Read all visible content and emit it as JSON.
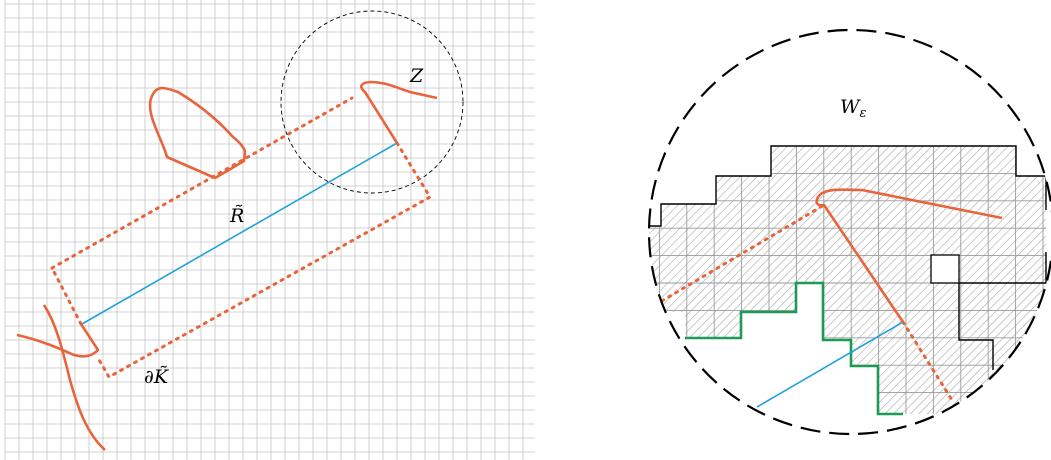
{
  "labels": {
    "z": "Z",
    "r_tilde": "R̃",
    "boundary_k_tilde": "∂K̃",
    "w_epsilon": "W",
    "w_epsilon_sub": "ε"
  },
  "colors": {
    "curve": "#e8643c",
    "segment": "#1fa3dc",
    "staircase": "#1e9a57",
    "grid": "#b9b9b9",
    "hatch": "#aaaaaa",
    "outline": "#000000"
  }
}
